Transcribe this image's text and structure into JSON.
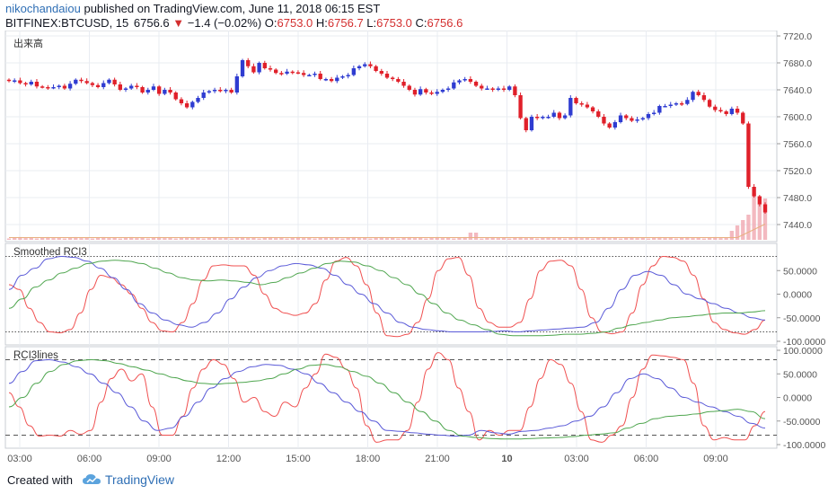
{
  "header": {
    "author": "nikochandaiou",
    "published_text": " published on TradingView.com, June 11, 2018 06:15 EST",
    "symbol": "BITFINEX:BTCUSD, 15",
    "last": "6756.6",
    "change": "−1.4 (−0.02%)",
    "o_label": "O:",
    "o_value": "6753.0",
    "h_label": "H:",
    "h_value": "6756.7",
    "l_label": "L:",
    "l_value": "6753.0",
    "c_label": "C:",
    "c_value": "6756.6"
  },
  "footer": {
    "created_with": "Created with",
    "brand": "TradingView"
  },
  "colors": {
    "up": "#2f3cd1",
    "down": "#e0202a",
    "volume": "#f0a8b0",
    "volume_ma": "#e8b080",
    "rci_fast": "#f05050",
    "rci_mid": "#5a5ad8",
    "rci_slow": "#4fa64f",
    "grid": "#e9ecf2",
    "axis_text": "#555555"
  },
  "chart_data": [
    {
      "type": "candlestick",
      "title": "出来高",
      "ylim": [
        7420,
        7720
      ],
      "y_ticks": [
        "7720.0",
        "7680.0",
        "7640.0",
        "7600.0",
        "7560.0",
        "7520.0",
        "7480.0",
        "7440.0"
      ],
      "y_tick_values": [
        7720,
        7680,
        7640,
        7600,
        7560,
        7520,
        7480,
        7440
      ],
      "x_ticks": [
        "03:00",
        "06:00",
        "09:00",
        "12:00",
        "15:00",
        "18:00",
        "21:00",
        "10",
        "03:00",
        "06:00",
        "09:00"
      ],
      "closes": [
        7653,
        7654,
        7650,
        7648,
        7652,
        7645,
        7644,
        7643,
        7644,
        7646,
        7642,
        7649,
        7655,
        7653,
        7650,
        7647,
        7644,
        7650,
        7655,
        7648,
        7640,
        7642,
        7646,
        7644,
        7636,
        7640,
        7645,
        7634,
        7640,
        7636,
        7626,
        7620,
        7614,
        7622,
        7628,
        7636,
        7638,
        7640,
        7638,
        7640,
        7636,
        7660,
        7684,
        7675,
        7666,
        7680,
        7672,
        7670,
        7665,
        7664,
        7667,
        7666,
        7665,
        7662,
        7662,
        7664,
        7656,
        7656,
        7653,
        7658,
        7660,
        7662,
        7672,
        7675,
        7678,
        7675,
        7668,
        7664,
        7658,
        7656,
        7652,
        7646,
        7640,
        7633,
        7641,
        7636,
        7634,
        7637,
        7640,
        7642,
        7651,
        7654,
        7656,
        7652,
        7646,
        7642,
        7642,
        7640,
        7642,
        7640,
        7645,
        7632,
        7598,
        7580,
        7600,
        7598,
        7600,
        7600,
        7606,
        7598,
        7602,
        7628,
        7620,
        7618,
        7614,
        7608,
        7600,
        7590,
        7584,
        7592,
        7602,
        7598,
        7594,
        7596,
        7598,
        7604,
        7606,
        7616,
        7616,
        7618,
        7620,
        7619,
        7625,
        7637,
        7632,
        7625,
        7615,
        7610,
        7608,
        7604,
        7612,
        7606,
        7590,
        7496,
        7482,
        7470,
        7458
      ],
      "volume": {
        "peak_index": 134,
        "peak_value": 0.72,
        "note": "small bars, spikes at end"
      }
    },
    {
      "type": "line",
      "title": "Smoothed RCI3",
      "ylim": [
        -100,
        100
      ],
      "y_ticks": [
        "50.0000",
        "0.0000",
        "-50.0000",
        "-100.0000"
      ],
      "y_tick_values": [
        50,
        0,
        -50,
        -100
      ],
      "dotted_levels": [
        80,
        -80
      ],
      "series": [
        {
          "values": [
            20,
            10,
            -30,
            -60,
            -80,
            -82,
            -75,
            -40,
            10,
            40,
            35,
            20,
            0,
            -30,
            -60,
            -78,
            -80,
            -60,
            -20,
            30,
            60,
            62,
            60,
            60,
            40,
            0,
            -30,
            -40,
            -45,
            -40,
            -20,
            30,
            70,
            78,
            60,
            20,
            -40,
            -88,
            -90,
            -85,
            -60,
            -10,
            50,
            75,
            78,
            40,
            -30,
            -60,
            -70,
            -70,
            -60,
            -10,
            50,
            70,
            72,
            60,
            10,
            -50,
            -80,
            -84,
            -80,
            -40,
            20,
            60,
            80,
            78,
            70,
            40,
            -10,
            -60,
            -75,
            -82,
            -85,
            -75,
            -55
          ]
        },
        {
          "values": [
            10,
            40,
            55,
            75,
            80,
            78,
            70,
            55,
            35,
            10,
            -20,
            -40,
            -55,
            -65,
            -70,
            -60,
            -40,
            -10,
            15,
            35,
            50,
            60,
            65,
            62,
            55,
            40,
            20,
            0,
            -20,
            -40,
            -60,
            -70,
            -75,
            -78,
            -80,
            -80,
            -80,
            -79,
            -78,
            -80,
            -78,
            -76,
            -74,
            -72,
            -70,
            -60,
            -30,
            10,
            40,
            48,
            40,
            20,
            0,
            -10,
            -20,
            -30,
            -40,
            -50,
            -55
          ]
        },
        {
          "values": [
            -30,
            -10,
            15,
            30,
            45,
            55,
            65,
            70,
            72,
            70,
            65,
            55,
            45,
            35,
            30,
            28,
            30,
            28,
            25,
            20,
            25,
            35,
            45,
            55,
            65,
            70,
            68,
            60,
            50,
            35,
            20,
            0,
            -20,
            -40,
            -55,
            -65,
            -75,
            -85,
            -88,
            -88,
            -88,
            -87,
            -85,
            -85,
            -83,
            -80,
            -72,
            -65,
            -60,
            -55,
            -50,
            -48,
            -45,
            -42,
            -40,
            -40,
            -38,
            -35
          ]
        }
      ]
    },
    {
      "type": "line",
      "title": "RCI3lines",
      "ylim": [
        -100,
        100
      ],
      "y_ticks": [
        "100.0000",
        "50.0000",
        "0.0000",
        "-50.0000",
        "-100.0000"
      ],
      "y_tick_values": [
        100,
        50,
        0,
        -50,
        -100
      ],
      "dashed_levels": [
        80,
        -80
      ],
      "series": [
        {
          "values": [
            10,
            -20,
            -60,
            -82,
            -80,
            -82,
            -70,
            -78,
            -70,
            -10,
            40,
            60,
            35,
            50,
            -20,
            -80,
            -80,
            -40,
            20,
            60,
            80,
            70,
            40,
            -10,
            0,
            -30,
            -40,
            -10,
            -20,
            20,
            50,
            92,
            85,
            60,
            20,
            -60,
            -95,
            -90,
            -90,
            -70,
            -10,
            60,
            95,
            80,
            20,
            -30,
            -90,
            -70,
            -80,
            -70,
            -70,
            -20,
            40,
            80,
            70,
            30,
            -30,
            -90,
            -95,
            -80,
            -60,
            0,
            60,
            90,
            88,
            85,
            80,
            30,
            -60,
            -90,
            -85,
            -90,
            -90,
            -60,
            -30
          ]
        },
        {
          "values": [
            30,
            55,
            78,
            80,
            75,
            65,
            50,
            30,
            10,
            -20,
            -50,
            -70,
            -65,
            -40,
            -10,
            20,
            40,
            55,
            65,
            70,
            68,
            60,
            50,
            30,
            10,
            -10,
            -30,
            -50,
            -70,
            -72,
            -75,
            -78,
            -80,
            -82,
            -80,
            -70,
            -75,
            -78,
            -72,
            -70,
            -65,
            -60,
            -50,
            -40,
            -20,
            10,
            40,
            50,
            40,
            20,
            0,
            -10,
            -20,
            -30,
            -40,
            -55,
            -65
          ]
        },
        {
          "values": [
            -20,
            0,
            30,
            55,
            70,
            78,
            80,
            78,
            72,
            65,
            58,
            50,
            42,
            35,
            30,
            28,
            30,
            32,
            35,
            40,
            50,
            60,
            68,
            70,
            65,
            55,
            45,
            30,
            10,
            -10,
            -30,
            -50,
            -70,
            -82,
            -85,
            -87,
            -88,
            -88,
            -87,
            -86,
            -85,
            -83,
            -80,
            -78,
            -75,
            -65,
            -55,
            -45,
            -40,
            -38,
            -35,
            -30,
            -28,
            -25,
            -30,
            -45
          ]
        }
      ]
    }
  ]
}
